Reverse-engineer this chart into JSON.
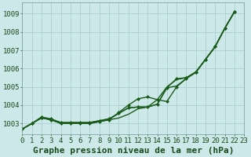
{
  "title": "Graphe pression niveau de la mer (hPa)",
  "x_labels": [
    "0",
    "1",
    "2",
    "3",
    "4",
    "5",
    "6",
    "7",
    "8",
    "9",
    "10",
    "11",
    "12",
    "13",
    "14",
    "15",
    "16",
    "17",
    "18",
    "19",
    "20",
    "21",
    "22",
    "23"
  ],
  "ylim": [
    1002.4,
    1009.6
  ],
  "xlim": [
    0,
    23
  ],
  "yticks": [
    1003,
    1004,
    1005,
    1006,
    1007,
    1008,
    1009
  ],
  "background_color": "#cce8e8",
  "grid_color": "#aacece",
  "line_color": "#1a5c1a",
  "series": [
    {
      "y": [
        1002.7,
        1003.0,
        1003.35,
        1003.2,
        1003.05,
        1003.05,
        1003.05,
        1003.05,
        1003.15,
        1003.25,
        1003.55,
        1003.85,
        1003.9,
        1003.9,
        1004.05,
        1004.95,
        1005.05,
        1005.45,
        1005.8,
        1006.5,
        1007.2,
        1008.2,
        1009.1,
        null
      ],
      "markers": false,
      "lw": 1.0
    },
    {
      "y": [
        1002.7,
        1003.0,
        1003.3,
        1003.2,
        1003.0,
        1003.0,
        1003.0,
        1003.0,
        1003.1,
        1003.2,
        1003.3,
        1003.5,
        1003.8,
        1003.9,
        1004.3,
        1005.0,
        1005.4,
        1005.5,
        1005.8,
        1006.5,
        1007.2,
        1008.2,
        1009.1,
        null
      ],
      "markers": false,
      "lw": 1.0
    },
    {
      "y": [
        1002.7,
        1003.0,
        1003.35,
        1003.25,
        1003.05,
        1003.05,
        1003.05,
        1003.05,
        1003.15,
        1003.25,
        1003.55,
        1003.85,
        1003.9,
        1003.9,
        1004.05,
        1004.95,
        1005.45,
        1005.5,
        1005.82,
        1006.5,
        1007.2,
        1008.2,
        1009.1,
        null
      ],
      "markers": true,
      "lw": 1.0
    },
    {
      "y": [
        1002.7,
        1003.0,
        1003.3,
        1003.2,
        1003.0,
        1003.0,
        1003.0,
        1003.0,
        1003.1,
        1003.2,
        1003.6,
        1004.0,
        1004.35,
        1004.45,
        1004.3,
        1004.2,
        1005.0,
        1005.45,
        1005.8,
        1006.5,
        1007.2,
        1008.2,
        1009.1,
        null
      ],
      "markers": true,
      "lw": 1.0
    }
  ],
  "title_fontsize": 8,
  "tick_fontsize": 6.5,
  "xlabel_fontsize": 8
}
